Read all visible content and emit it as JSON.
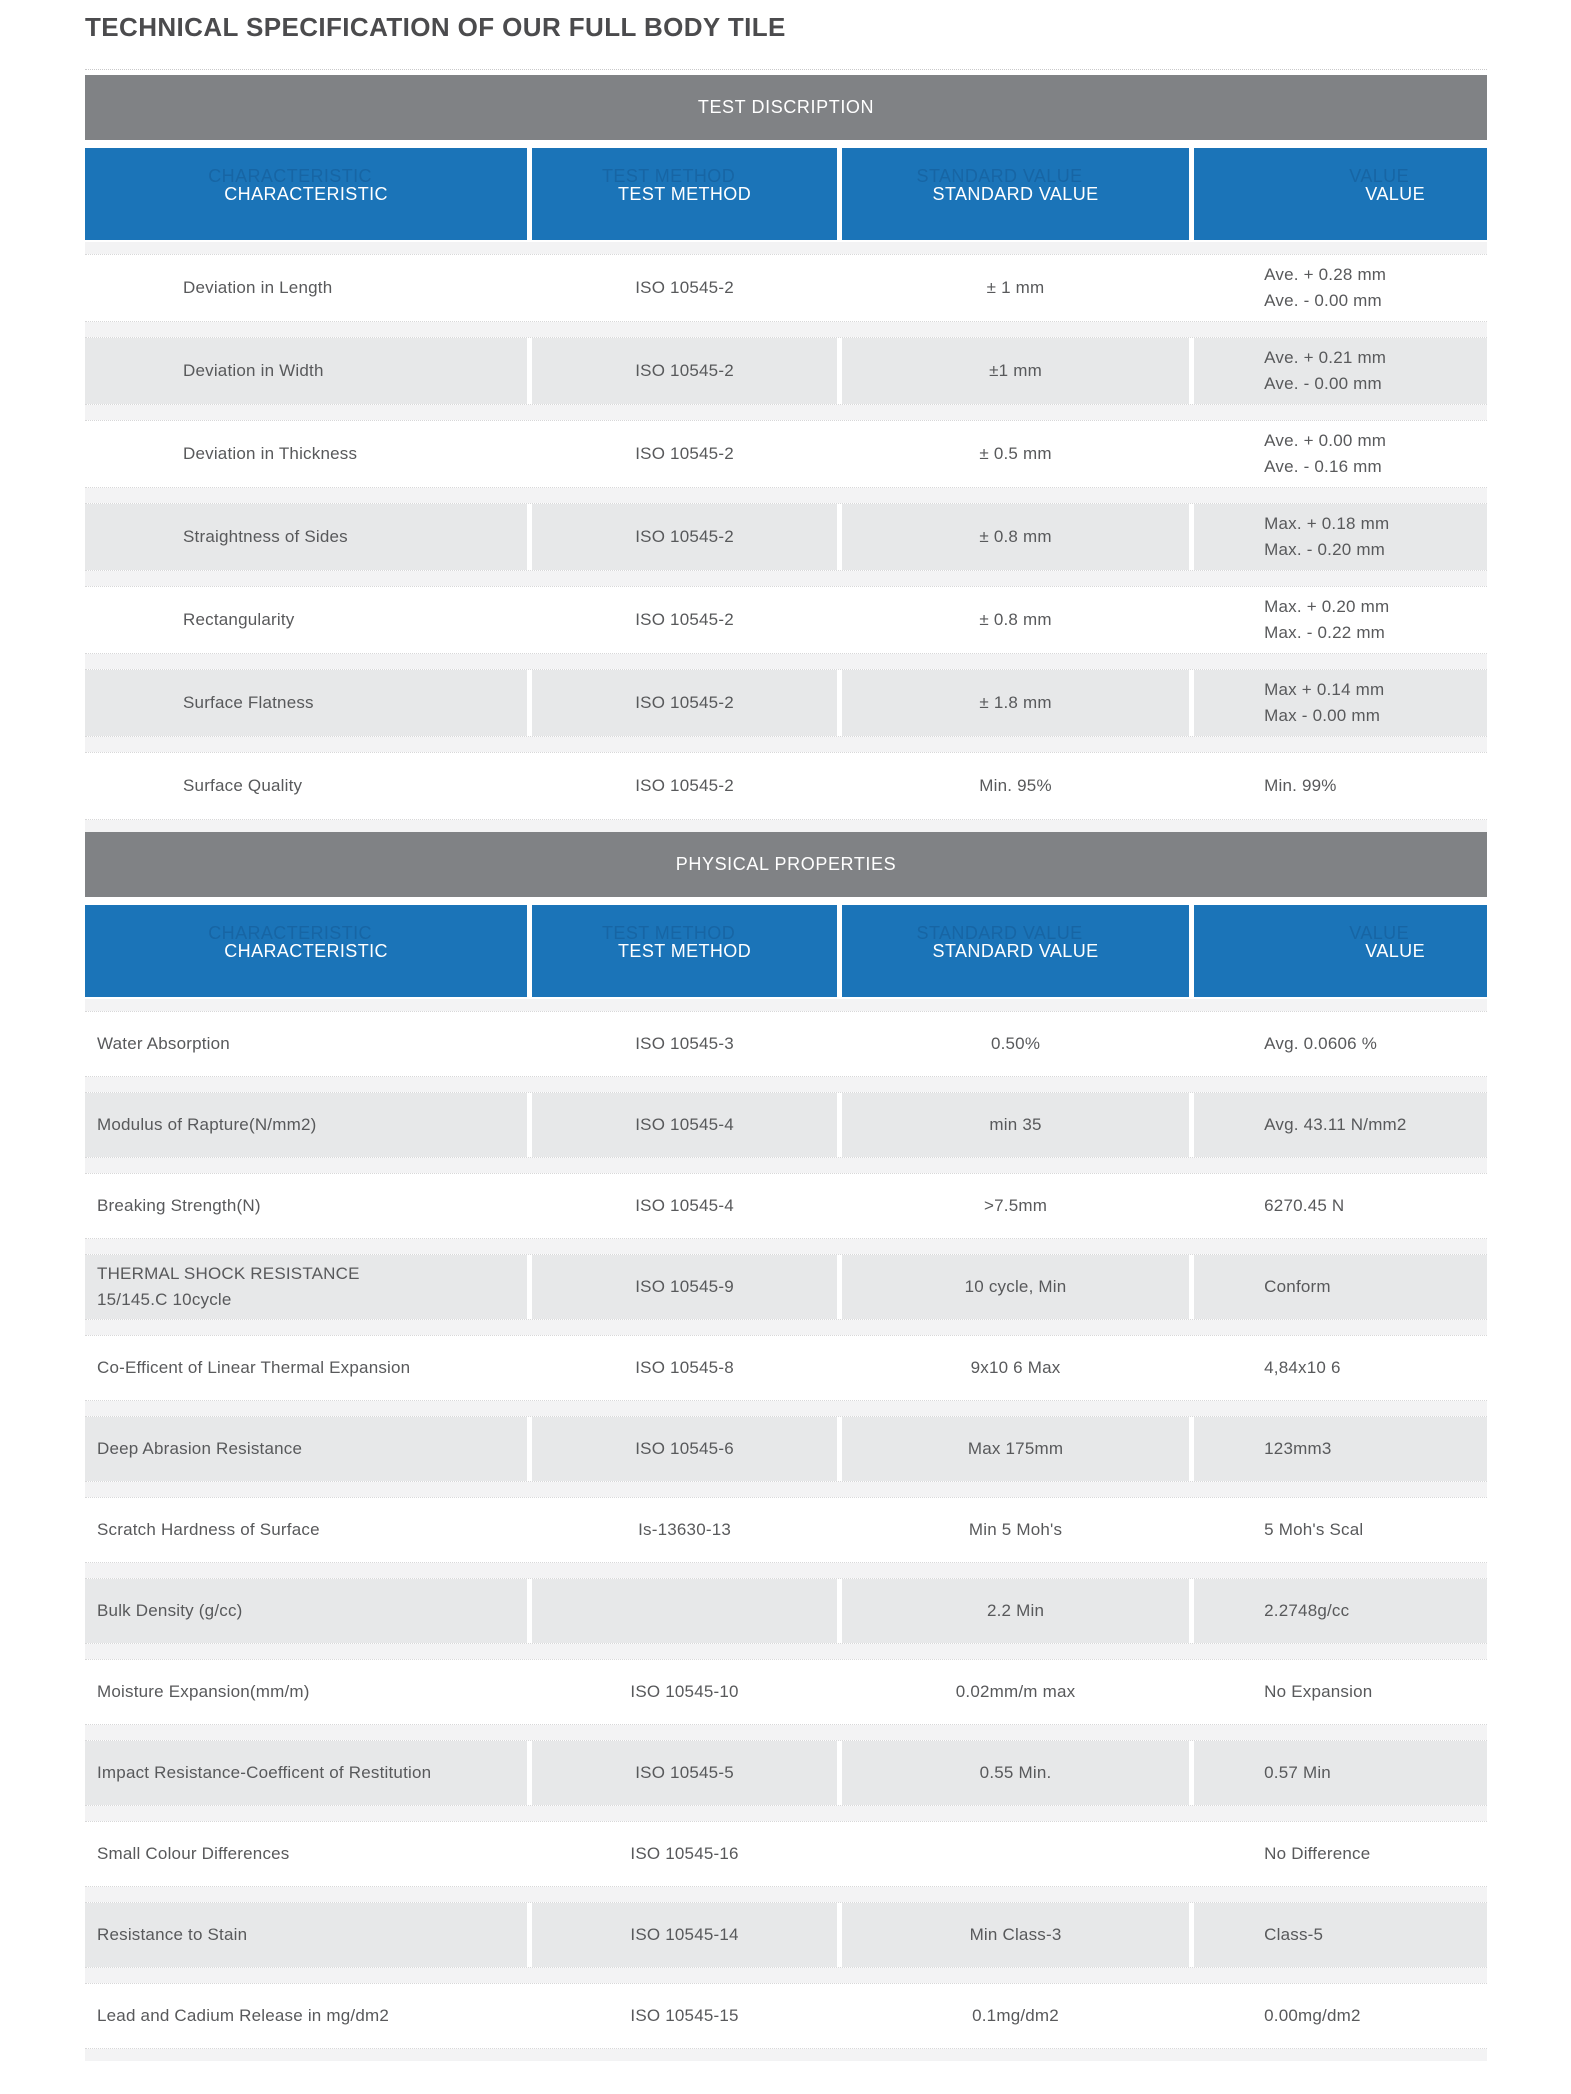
{
  "page": {
    "title": "TECHNICAL SPECIFICATION OF OUR FULL BODY TILE"
  },
  "columns": [
    "CHARACTERISTIC",
    "TEST METHOD",
    "STANDARD VALUE",
    "VALUE"
  ],
  "colors": {
    "header_blue": "#1b74b8",
    "section_gray": "#808285",
    "row_gray": "#e7e8e9"
  },
  "sections": [
    {
      "heading": "TEST DISCRIPTION",
      "rows": [
        {
          "cells": [
            [
              "Deviation in Length"
            ],
            [
              "ISO 10545-2"
            ],
            [
              "± 1 mm"
            ],
            [
              "Ave. + 0.28 mm",
              "Ave. - 0.00 mm"
            ]
          ]
        },
        {
          "cells": [
            [
              "Deviation in Width"
            ],
            [
              "ISO 10545-2"
            ],
            [
              "±1 mm"
            ],
            [
              "Ave. + 0.21 mm",
              "Ave. - 0.00 mm"
            ]
          ]
        },
        {
          "cells": [
            [
              "Deviation in Thickness"
            ],
            [
              "ISO 10545-2"
            ],
            [
              "± 0.5 mm"
            ],
            [
              "Ave. + 0.00 mm",
              "Ave. - 0.16 mm"
            ]
          ]
        },
        {
          "cells": [
            [
              "Straightness of Sides"
            ],
            [
              "ISO 10545-2"
            ],
            [
              "± 0.8 mm"
            ],
            [
              "Max. + 0.18 mm",
              "Max. - 0.20 mm"
            ]
          ]
        },
        {
          "cells": [
            [
              "Rectangularity"
            ],
            [
              "ISO 10545-2"
            ],
            [
              "± 0.8 mm"
            ],
            [
              "Max. + 0.20 mm",
              "Max. - 0.22 mm"
            ]
          ]
        },
        {
          "cells": [
            [
              "Surface Flatness"
            ],
            [
              "ISO 10545-2"
            ],
            [
              "± 1.8 mm"
            ],
            [
              "Max +  0.14 mm",
              "Max -  0.00 mm"
            ]
          ]
        },
        {
          "cells": [
            [
              "Surface Quality"
            ],
            [
              "ISO 10545-2"
            ],
            [
              "Min. 95%"
            ],
            [
              "Min. 99%"
            ]
          ]
        }
      ]
    },
    {
      "heading": "PHYSICAL PROPERTIES",
      "rows": [
        {
          "cells": [
            [
              "Water Absorption"
            ],
            [
              "ISO 10545-3"
            ],
            [
              "0.50%"
            ],
            [
              "Avg. 0.0606 %"
            ]
          ]
        },
        {
          "cells": [
            [
              "Modulus of Rapture(N/mm2)"
            ],
            [
              "ISO 10545-4"
            ],
            [
              "min 35"
            ],
            [
              "Avg. 43.11 N/mm2"
            ]
          ]
        },
        {
          "cells": [
            [
              "Breaking Strength(N)"
            ],
            [
              "ISO 10545-4"
            ],
            [
              ">7.5mm"
            ],
            [
              "6270.45 N"
            ]
          ]
        },
        {
          "cells": [
            [
              "THERMAL SHOCK RESISTANCE",
              "15/145.C 10cycle"
            ],
            [
              "ISO 10545-9"
            ],
            [
              "10 cycle, Min"
            ],
            [
              "Conform"
            ]
          ]
        },
        {
          "cells": [
            [
              "Co-Efficent of Linear Thermal Expansion"
            ],
            [
              "ISO 10545-8"
            ],
            [
              "9x10 6 Max"
            ],
            [
              "4,84x10 6"
            ]
          ]
        },
        {
          "cells": [
            [
              "Deep Abrasion Resistance"
            ],
            [
              "ISO 10545-6"
            ],
            [
              "Max 175mm"
            ],
            [
              "123mm3"
            ]
          ]
        },
        {
          "cells": [
            [
              "Scratch Hardness of Surface"
            ],
            [
              "Is-13630-13"
            ],
            [
              "Min 5 Moh's"
            ],
            [
              "5 Moh's Scal"
            ]
          ]
        },
        {
          "cells": [
            [
              "Bulk Density (g/cc)"
            ],
            [],
            [
              "2.2 Min"
            ],
            [
              "2.2748g/cc"
            ]
          ]
        },
        {
          "cells": [
            [
              "Moisture Expansion(mm/m)"
            ],
            [
              "ISO 10545-10"
            ],
            [
              "0.02mm/m max"
            ],
            [
              "No Expansion"
            ]
          ]
        },
        {
          "cells": [
            [
              "Impact Resistance-Coefficent of Restitution"
            ],
            [
              "ISO 10545-5"
            ],
            [
              "0.55 Min."
            ],
            [
              "0.57 Min"
            ]
          ]
        },
        {
          "cells": [
            [
              "Small Colour Differences"
            ],
            [
              "ISO 10545-16"
            ],
            [],
            [
              "No Difference"
            ]
          ]
        },
        {
          "cells": [
            [
              "Resistance to Stain"
            ],
            [
              "ISO 10545-14"
            ],
            [
              "Min Class-3"
            ],
            [
              "Class-5"
            ]
          ]
        },
        {
          "cells": [
            [
              "Lead and Cadium Release in mg/dm2"
            ],
            [
              "ISO 10545-15"
            ],
            [
              "0.1mg/dm2"
            ],
            [
              "0.00mg/dm2"
            ]
          ]
        }
      ]
    }
  ]
}
